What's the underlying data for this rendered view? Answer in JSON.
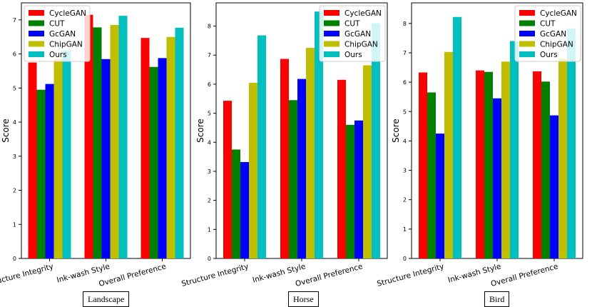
{
  "colors": {
    "CycleGAN": "#ff0000",
    "CUT": "#008000",
    "GcGAN": "#0000ff",
    "ChipGAN": "#bfbf00",
    "Ours": "#00bfbf"
  },
  "chart_data": [
    {
      "type": "bar",
      "caption": "Landscape",
      "ylabel": "Score",
      "ylim": [
        0,
        7.5
      ],
      "yticks": [
        "0",
        "1",
        "2",
        "3",
        "4",
        "5",
        "6",
        "7"
      ],
      "legend": "top-left",
      "categories": [
        "Structure Integrity",
        "Ink-wash Style",
        "Overall Preference"
      ],
      "series": [
        {
          "name": "CycleGAN",
          "values": [
            5.75,
            7.15,
            6.47
          ]
        },
        {
          "name": "CUT",
          "values": [
            4.95,
            6.78,
            5.62
          ]
        },
        {
          "name": "GcGAN",
          "values": [
            5.12,
            5.85,
            5.88
          ]
        },
        {
          "name": "ChipGAN",
          "values": [
            5.85,
            6.85,
            6.5
          ]
        },
        {
          "name": "Ours",
          "values": [
            6.1,
            7.12,
            6.77
          ]
        }
      ]
    },
    {
      "type": "bar",
      "caption": "Horse",
      "ylabel": "Score",
      "ylim": [
        0,
        8.8
      ],
      "yticks": [
        "0",
        "1",
        "2",
        "3",
        "4",
        "5",
        "6",
        "7",
        "8"
      ],
      "legend": "top-right",
      "categories": [
        "Structure Integrity",
        "Ink-wash Style",
        "Overall Preference"
      ],
      "series": [
        {
          "name": "CycleGAN",
          "values": [
            5.43,
            6.87,
            6.15
          ]
        },
        {
          "name": "CUT",
          "values": [
            3.75,
            5.45,
            4.6
          ]
        },
        {
          "name": "GcGAN",
          "values": [
            3.32,
            6.18,
            4.75
          ]
        },
        {
          "name": "ChipGAN",
          "values": [
            6.05,
            7.25,
            6.65
          ]
        },
        {
          "name": "Ours",
          "values": [
            7.68,
            8.5,
            8.1
          ]
        }
      ]
    },
    {
      "type": "bar",
      "caption": "Bird",
      "ylabel": "Score",
      "ylim": [
        0,
        8.7
      ],
      "yticks": [
        "0",
        "1",
        "2",
        "3",
        "4",
        "5",
        "6",
        "7",
        "8"
      ],
      "legend": "top-right",
      "categories": [
        "Structure Integrity",
        "Ink-wash Style",
        "Overall Preference"
      ],
      "series": [
        {
          "name": "CycleGAN",
          "values": [
            6.33,
            6.4,
            6.37
          ]
        },
        {
          "name": "CUT",
          "values": [
            5.65,
            6.35,
            6.02
          ]
        },
        {
          "name": "GcGAN",
          "values": [
            4.25,
            5.45,
            4.87
          ]
        },
        {
          "name": "ChipGAN",
          "values": [
            7.03,
            6.7,
            6.8
          ]
        },
        {
          "name": "Ours",
          "values": [
            8.22,
            7.4,
            7.82
          ]
        }
      ]
    }
  ]
}
